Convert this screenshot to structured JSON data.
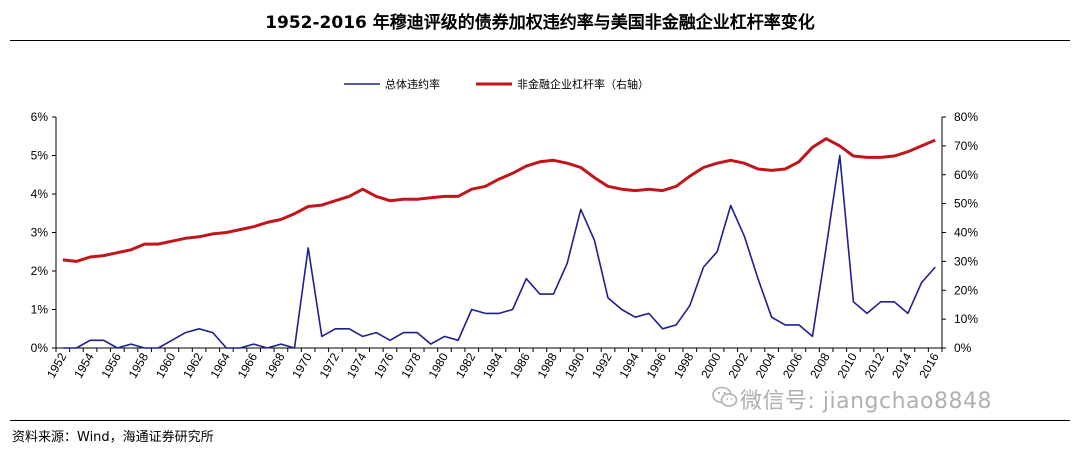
{
  "title": "1952-2016 年穆迪评级的债券加权违约率与美国非金融企业杠杆率变化",
  "source": "资料来源：Wind，海通证券研究所",
  "watermark": "微信号: jiangchao8848",
  "watermark_icon": "wechat-icon",
  "chart_data": {
    "type": "line",
    "title": "1952-2016 年穆迪评级的债券加权违约率与美国非金融企业杠杆率变化",
    "x": [
      1952,
      1953,
      1954,
      1955,
      1956,
      1957,
      1958,
      1959,
      1960,
      1961,
      1962,
      1963,
      1964,
      1965,
      1966,
      1967,
      1968,
      1969,
      1970,
      1971,
      1972,
      1973,
      1974,
      1975,
      1976,
      1977,
      1978,
      1979,
      1980,
      1981,
      1982,
      1983,
      1984,
      1985,
      1986,
      1987,
      1988,
      1989,
      1990,
      1991,
      1992,
      1993,
      1994,
      1995,
      1996,
      1997,
      1998,
      1999,
      2000,
      2001,
      2002,
      2003,
      2004,
      2005,
      2006,
      2007,
      2008,
      2009,
      2010,
      2011,
      2012,
      2013,
      2014,
      2015,
      2016
    ],
    "x_tick_labels": [
      "1952",
      "1954",
      "1956",
      "1958",
      "1960",
      "1962",
      "1964",
      "1966",
      "1968",
      "1970",
      "1972",
      "1974",
      "1976",
      "1978",
      "1980",
      "1982",
      "1984",
      "1986",
      "1988",
      "1990",
      "1992",
      "1994",
      "1996",
      "1998",
      "2000",
      "2002",
      "2004",
      "2006",
      "2008",
      "2010",
      "2012",
      "2014",
      "2016"
    ],
    "left_axis": {
      "ylim": [
        0,
        6
      ],
      "ticks": [
        "0%",
        "1%",
        "2%",
        "3%",
        "4%",
        "5%",
        "6%"
      ]
    },
    "right_axis": {
      "ylim": [
        0,
        80
      ],
      "ticks": [
        "0%",
        "10%",
        "20%",
        "30%",
        "40%",
        "50%",
        "60%",
        "70%",
        "80%"
      ]
    },
    "grid": false,
    "legend": "top-center",
    "series": [
      {
        "name": "总体违约率",
        "axis": "left",
        "color": "#1f1f8f",
        "values": [
          0.0,
          0.0,
          0.2,
          0.2,
          0.0,
          0.1,
          0.0,
          0.0,
          0.2,
          0.4,
          0.5,
          0.4,
          0.0,
          0.0,
          0.1,
          0.0,
          0.1,
          0.0,
          2.6,
          0.3,
          0.5,
          0.5,
          0.3,
          0.4,
          0.2,
          0.4,
          0.4,
          0.1,
          0.3,
          0.2,
          1.0,
          0.9,
          0.9,
          1.0,
          1.8,
          1.4,
          1.4,
          2.2,
          3.6,
          2.8,
          1.3,
          1.0,
          0.8,
          0.9,
          0.5,
          0.6,
          1.1,
          2.1,
          2.5,
          3.7,
          2.9,
          1.8,
          0.8,
          0.6,
          0.6,
          0.3,
          2.6,
          5.0,
          1.2,
          0.9,
          1.2,
          1.2,
          0.9,
          1.7,
          2.1
        ]
      },
      {
        "name": "非金融企业杠杆率（右轴）",
        "axis": "right",
        "color": "#c0161b",
        "values": [
          30.5,
          30.0,
          31.5,
          32.0,
          33.0,
          34.0,
          36.0,
          36.0,
          37.0,
          38.0,
          38.5,
          39.5,
          40.0,
          41.0,
          42.0,
          43.5,
          44.5,
          46.5,
          49.0,
          49.5,
          51.0,
          52.5,
          55.0,
          52.5,
          51.0,
          51.5,
          51.5,
          52.0,
          52.5,
          52.5,
          55.0,
          56.0,
          58.5,
          60.5,
          63.0,
          64.5,
          65.0,
          64.0,
          62.5,
          59.0,
          56.0,
          55.0,
          54.5,
          55.0,
          54.5,
          56.0,
          59.5,
          62.5,
          64.0,
          65.0,
          64.0,
          62.0,
          61.5,
          62.0,
          64.5,
          69.5,
          72.5,
          70.0,
          66.5,
          66.0,
          66.0,
          66.5,
          68.0,
          70.0,
          72.0
        ]
      }
    ]
  }
}
